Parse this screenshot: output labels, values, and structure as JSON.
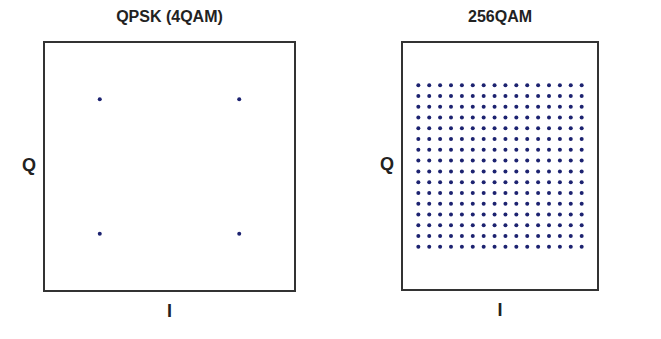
{
  "chart_data": [
    {
      "type": "scatter",
      "title": "QPSK (4QAM)",
      "xlabel": "I",
      "ylabel": "Q",
      "x": [
        -1,
        -1,
        1,
        1
      ],
      "y": [
        -1,
        1,
        -1,
        1
      ],
      "color": "#1c2270",
      "marker": "circle",
      "xlim": [
        -1.8,
        1.8
      ],
      "ylim": [
        -1.85,
        1.85
      ],
      "xticks": [
        -1.6,
        -1.2,
        -0.8,
        -0.4,
        0,
        0.4,
        0.8,
        1.2,
        1.6
      ],
      "yticks": [
        -1.6,
        -1.2,
        -0.8,
        -0.4,
        0,
        0.4,
        0.8,
        1.2,
        1.6
      ],
      "grid": true,
      "tick_labels": false
    },
    {
      "type": "scatter",
      "title": "256QAM",
      "xlabel": "I",
      "ylabel": "Q",
      "x": [
        -15,
        -15,
        -15,
        -15,
        -15,
        -15,
        -15,
        -15,
        -15,
        -15,
        -15,
        -15,
        -15,
        -15,
        -15,
        -15,
        -13,
        -13,
        -13,
        -13,
        -13,
        -13,
        -13,
        -13,
        -13,
        -13,
        -13,
        -13,
        -13,
        -13,
        -13,
        -13,
        -11,
        -11,
        -11,
        -11,
        -11,
        -11,
        -11,
        -11,
        -11,
        -11,
        -11,
        -11,
        -11,
        -11,
        -11,
        -11,
        -9,
        -9,
        -9,
        -9,
        -9,
        -9,
        -9,
        -9,
        -9,
        -9,
        -9,
        -9,
        -9,
        -9,
        -9,
        -9,
        -7,
        -7,
        -7,
        -7,
        -7,
        -7,
        -7,
        -7,
        -7,
        -7,
        -7,
        -7,
        -7,
        -7,
        -7,
        -7,
        -5,
        -5,
        -5,
        -5,
        -5,
        -5,
        -5,
        -5,
        -5,
        -5,
        -5,
        -5,
        -5,
        -5,
        -5,
        -5,
        -3,
        -3,
        -3,
        -3,
        -3,
        -3,
        -3,
        -3,
        -3,
        -3,
        -3,
        -3,
        -3,
        -3,
        -3,
        -3,
        -1,
        -1,
        -1,
        -1,
        -1,
        -1,
        -1,
        -1,
        -1,
        -1,
        -1,
        -1,
        -1,
        -1,
        -1,
        -1,
        1,
        1,
        1,
        1,
        1,
        1,
        1,
        1,
        1,
        1,
        1,
        1,
        1,
        1,
        1,
        1,
        3,
        3,
        3,
        3,
        3,
        3,
        3,
        3,
        3,
        3,
        3,
        3,
        3,
        3,
        3,
        3,
        5,
        5,
        5,
        5,
        5,
        5,
        5,
        5,
        5,
        5,
        5,
        5,
        5,
        5,
        5,
        5,
        7,
        7,
        7,
        7,
        7,
        7,
        7,
        7,
        7,
        7,
        7,
        7,
        7,
        7,
        7,
        7,
        9,
        9,
        9,
        9,
        9,
        9,
        9,
        9,
        9,
        9,
        9,
        9,
        9,
        9,
        9,
        9,
        11,
        11,
        11,
        11,
        11,
        11,
        11,
        11,
        11,
        11,
        11,
        11,
        11,
        11,
        11,
        11,
        13,
        13,
        13,
        13,
        13,
        13,
        13,
        13,
        13,
        13,
        13,
        13,
        13,
        13,
        13,
        13,
        15,
        15,
        15,
        15,
        15,
        15,
        15,
        15,
        15,
        15,
        15,
        15,
        15,
        15,
        15,
        15
      ],
      "y": [
        -15,
        -13,
        -11,
        -9,
        -7,
        -5,
        -3,
        -1,
        1,
        3,
        5,
        7,
        9,
        11,
        13,
        15,
        -15,
        -13,
        -11,
        -9,
        -7,
        -5,
        -3,
        -1,
        1,
        3,
        5,
        7,
        9,
        11,
        13,
        15,
        -15,
        -13,
        -11,
        -9,
        -7,
        -5,
        -3,
        -1,
        1,
        3,
        5,
        7,
        9,
        11,
        13,
        15,
        -15,
        -13,
        -11,
        -9,
        -7,
        -5,
        -3,
        -1,
        1,
        3,
        5,
        7,
        9,
        11,
        13,
        15,
        -15,
        -13,
        -11,
        -9,
        -7,
        -5,
        -3,
        -1,
        1,
        3,
        5,
        7,
        9,
        11,
        13,
        15,
        -15,
        -13,
        -11,
        -9,
        -7,
        -5,
        -3,
        -1,
        1,
        3,
        5,
        7,
        9,
        11,
        13,
        15,
        -15,
        -13,
        -11,
        -9,
        -7,
        -5,
        -3,
        -1,
        1,
        3,
        5,
        7,
        9,
        11,
        13,
        15,
        -15,
        -13,
        -11,
        -9,
        -7,
        -5,
        -3,
        -1,
        1,
        3,
        5,
        7,
        9,
        11,
        13,
        15,
        -15,
        -13,
        -11,
        -9,
        -7,
        -5,
        -3,
        -1,
        1,
        3,
        5,
        7,
        9,
        11,
        13,
        15,
        -15,
        -13,
        -11,
        -9,
        -7,
        -5,
        -3,
        -1,
        1,
        3,
        5,
        7,
        9,
        11,
        13,
        15,
        -15,
        -13,
        -11,
        -9,
        -7,
        -5,
        -3,
        -1,
        1,
        3,
        5,
        7,
        9,
        11,
        13,
        15,
        -15,
        -13,
        -11,
        -9,
        -7,
        -5,
        -3,
        -1,
        1,
        3,
        5,
        7,
        9,
        11,
        13,
        15,
        -15,
        -13,
        -11,
        -9,
        -7,
        -5,
        -3,
        -1,
        1,
        3,
        5,
        7,
        9,
        11,
        13,
        15,
        -15,
        -13,
        -11,
        -9,
        -7,
        -5,
        -3,
        -1,
        1,
        3,
        5,
        7,
        9,
        11,
        13,
        15,
        -15,
        -13,
        -11,
        -9,
        -7,
        -5,
        -3,
        -1,
        1,
        3,
        5,
        7,
        9,
        11,
        13,
        15,
        -15,
        -13,
        -11,
        -9,
        -7,
        -5,
        -3,
        -1,
        1,
        3,
        5,
        7,
        9,
        11,
        13,
        15
      ],
      "color": "#1c2270",
      "marker": "circle",
      "xlim": [
        -18,
        18
      ],
      "ylim": [
        -23,
        23
      ],
      "xticks": [
        -16,
        -12,
        -8,
        -4,
        0,
        4,
        8,
        12,
        16
      ],
      "yticks": [
        -20,
        -16,
        -12,
        -8,
        -4,
        0,
        4,
        8,
        12,
        16,
        20
      ],
      "grid": true,
      "tick_labels": false
    }
  ]
}
